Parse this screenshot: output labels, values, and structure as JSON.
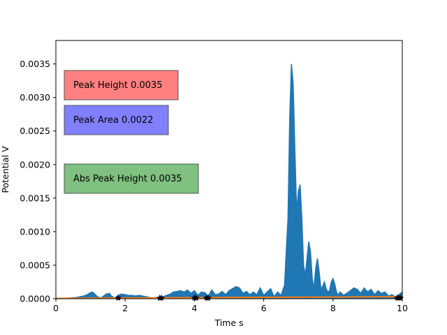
{
  "chart_data": {
    "type": "area",
    "xlabel": "Time s",
    "ylabel": "Potential V",
    "xlim": [
      0,
      10
    ],
    "ylim": [
      0,
      0.00385
    ],
    "x_ticks": [
      0,
      2,
      4,
      6,
      8,
      10
    ],
    "x_tick_labels": [
      "0",
      "2",
      "4",
      "6",
      "8",
      "10"
    ],
    "y_ticks": [
      0,
      0.0005,
      0.001,
      0.0015,
      0.002,
      0.0025,
      0.003,
      0.0035
    ],
    "y_tick_labels": [
      "0.0000",
      "0.0005",
      "0.0010",
      "0.0015",
      "0.0020",
      "0.0025",
      "0.0030",
      "0.0035"
    ],
    "grid": false,
    "colors": {
      "signal": "#1f77b4",
      "baseline": "#ff7f0e",
      "markers": "#000000",
      "peak_height_box": "#ff8080",
      "peak_area_box": "#8080ff",
      "abs_peak_height_box": "#80c080"
    },
    "signal": {
      "x": [
        0,
        0.2,
        0.4,
        0.6,
        0.8,
        0.9,
        1.0,
        1.05,
        1.1,
        1.2,
        1.3,
        1.45,
        1.55,
        1.6,
        1.7,
        1.8,
        1.9,
        2.0,
        2.1,
        2.2,
        2.3,
        2.4,
        2.5,
        2.6,
        2.7,
        2.8,
        2.9,
        3.0,
        3.1,
        3.2,
        3.3,
        3.4,
        3.5,
        3.6,
        3.7,
        3.8,
        3.9,
        4.0,
        4.1,
        4.2,
        4.3,
        4.4,
        4.5,
        4.6,
        4.7,
        4.8,
        4.9,
        5.0,
        5.1,
        5.2,
        5.3,
        5.4,
        5.5,
        5.6,
        5.7,
        5.8,
        5.9,
        6.0,
        6.1,
        6.2,
        6.3,
        6.4,
        6.5,
        6.6,
        6.7,
        6.75,
        6.8,
        6.85,
        6.9,
        6.95,
        7.0,
        7.05,
        7.1,
        7.15,
        7.2,
        7.25,
        7.3,
        7.35,
        7.4,
        7.45,
        7.5,
        7.55,
        7.6,
        7.65,
        7.7,
        7.75,
        7.8,
        7.85,
        7.9,
        7.95,
        8.0,
        8.05,
        8.1,
        8.15,
        8.2,
        8.25,
        8.3,
        8.4,
        8.5,
        8.6,
        8.7,
        8.8,
        8.9,
        9.0,
        9.1,
        9.2,
        9.3,
        9.4,
        9.5,
        9.6,
        9.7,
        9.8,
        9.9,
        10.0
      ],
      "y": [
        0,
        5e-06,
        1e-05,
        2e-05,
        4e-05,
        6e-05,
        9e-05,
        0.0001,
        8e-05,
        3e-05,
        1e-05,
        7e-05,
        8e-05,
        4e-05,
        1e-05,
        5e-05,
        7e-05,
        6e-05,
        5e-05,
        5e-05,
        4e-05,
        5e-05,
        4e-05,
        3e-05,
        2e-05,
        1e-05,
        2e-05,
        1e-05,
        3e-05,
        5e-05,
        7e-05,
        0.0001,
        0.00011,
        0.00012,
        0.0001,
        0.00013,
        8e-05,
        0.00012,
        5e-05,
        0.0001,
        9e-05,
        4e-05,
        0.00013,
        6e-05,
        7e-05,
        0.00011,
        6e-05,
        0.00012,
        0.00015,
        0.00018,
        0.00016,
        8e-05,
        0.00011,
        6e-05,
        0.0001,
        6e-05,
        0.00016,
        5e-05,
        0.0001,
        0.00015,
        3e-05,
        0.0001,
        5e-05,
        0.0002,
        0.0012,
        0.0027,
        0.0035,
        0.0032,
        0.0022,
        0.0013,
        0.0016,
        0.0017,
        0.0012,
        0.0005,
        0.00035,
        0.0006,
        0.00085,
        0.0007,
        0.0003,
        0.00015,
        0.00045,
        0.0006,
        0.0004,
        0.00015,
        0.00018,
        0.00025,
        0.00015,
        0.0001,
        0.00012,
        0.00025,
        0.0003,
        0.00022,
        0.0001,
        5e-05,
        0.0001,
        8e-05,
        5e-05,
        8e-05,
        0.00012,
        0.00016,
        0.00014,
        8e-05,
        0.00016,
        0.0001,
        0.00014,
        6e-05,
        0.00012,
        8e-05,
        0.0001,
        4e-05,
        6e-05,
        3e-05,
        6e-05,
        0.0001
      ]
    },
    "baseline": {
      "x": [
        0,
        10
      ],
      "y": [
        5e-06,
        3e-05
      ]
    },
    "markers": [
      1.8,
      3.0,
      3.05,
      4.0,
      4.05,
      4.35,
      4.4,
      9.85,
      9.9,
      9.95
    ],
    "annotations": [
      {
        "text": "Peak Height 0.0035",
        "key": "peak_height_box"
      },
      {
        "text": "Peak Area 0.0022",
        "key": "peak_area_box"
      },
      {
        "text": "Abs Peak Height 0.0035",
        "key": "abs_peak_height_box"
      }
    ]
  }
}
